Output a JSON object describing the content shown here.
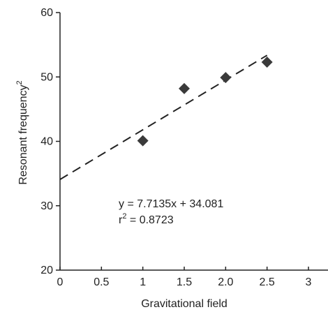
{
  "chart_data": {
    "type": "scatter",
    "xlabel": "Gravitational field",
    "ylabel": "Resonant frequency",
    "ylabel_superscript": "2",
    "xlim": [
      0,
      3
    ],
    "ylim": [
      20,
      60
    ],
    "x_ticks": [
      0,
      0.5,
      1,
      1.5,
      2.0,
      2.5,
      3
    ],
    "x_tick_labels": [
      "0",
      "0.5",
      "1",
      "1.5",
      "2.0",
      "2.5",
      "3"
    ],
    "y_ticks": [
      20,
      30,
      40,
      50,
      60
    ],
    "y_tick_labels": [
      "20",
      "30",
      "40",
      "50",
      "60"
    ],
    "grid": false,
    "series": [
      {
        "marker": "diamond",
        "color": "#3a3a3a",
        "points": [
          {
            "x": 1.0,
            "y": 40.1
          },
          {
            "x": 1.5,
            "y": 48.2
          },
          {
            "x": 2.0,
            "y": 49.9
          },
          {
            "x": 2.5,
            "y": 52.3
          }
        ]
      }
    ],
    "trendline": {
      "style": "dashed",
      "color": "#222222",
      "slope": 7.7135,
      "intercept": 34.081,
      "x_range": [
        0,
        2.5
      ]
    },
    "annotations": {
      "equation": "y = 7.7135x + 34.081",
      "r2_prefix": "r",
      "r2_sup": "2",
      "r2_suffix": " = 0.8723"
    }
  }
}
